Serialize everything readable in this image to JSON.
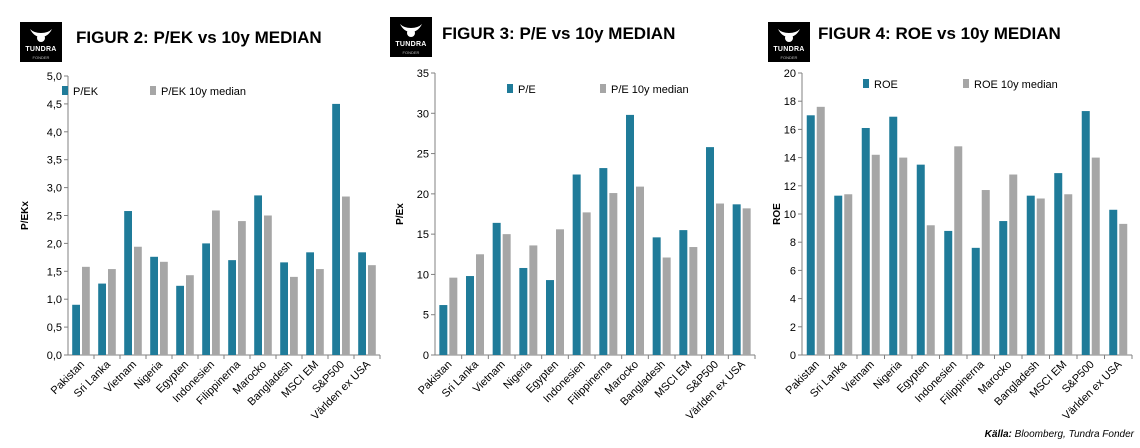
{
  "colors": {
    "series1": "#1f7b99",
    "series2": "#a6a6a6",
    "axis": "#808080",
    "grid": "#d9d9d9"
  },
  "logo": {
    "text": "TUNDRA",
    "sub": "FONDER"
  },
  "source": {
    "label": "Källa:",
    "text": " Bloomberg, Tundra Fonder"
  },
  "chart_data": [
    {
      "type": "bar",
      "title": "FIGUR 2: P/EK vs 10y MEDIAN",
      "ylabel": "P/EKx",
      "ylim": [
        0,
        5
      ],
      "yticks": [
        "0,0",
        "0,5",
        "1,0",
        "1,5",
        "2,0",
        "2,5",
        "3,0",
        "3,5",
        "4,0",
        "4,5",
        "5,0"
      ],
      "categories": [
        "Pakistan",
        "Sri Lanka",
        "Vietnam",
        "Nigeria",
        "Egypten",
        "Indonesien",
        "Filippinerna",
        "Marocko",
        "Bangladesh",
        "MSCI EM",
        "S&P500",
        "Världen ex USA"
      ],
      "series": [
        {
          "name": "P/EK",
          "values": [
            0.9,
            1.28,
            2.58,
            1.76,
            1.24,
            2.0,
            1.7,
            2.86,
            1.66,
            1.84,
            4.5,
            1.84
          ]
        },
        {
          "name": "P/EK 10y median",
          "values": [
            1.58,
            1.54,
            1.94,
            1.67,
            1.43,
            2.59,
            2.4,
            2.5,
            1.4,
            1.54,
            2.84,
            1.61
          ]
        }
      ],
      "grid": false,
      "legend": "top"
    },
    {
      "type": "bar",
      "title": "FIGUR 3: P/E vs 10y MEDIAN",
      "ylabel": "P/Ex",
      "ylim": [
        0,
        35
      ],
      "yticks": [
        "0",
        "5",
        "10",
        "15",
        "20",
        "25",
        "30",
        "35"
      ],
      "categories": [
        "Pakistan",
        "Sri Lanka",
        "Vietnam",
        "Nigeria",
        "Egypten",
        "Indonesien",
        "Filippinerna",
        "Marocko",
        "Bangladesh",
        "MSCI EM",
        "S&P500",
        "Världen ex USA"
      ],
      "series": [
        {
          "name": "P/E",
          "values": [
            6.2,
            9.8,
            16.4,
            10.8,
            9.3,
            22.4,
            23.2,
            29.8,
            14.6,
            15.5,
            25.8,
            18.7
          ]
        },
        {
          "name": "P/E 10y median",
          "values": [
            9.6,
            12.5,
            15.0,
            13.6,
            15.6,
            17.7,
            20.1,
            20.9,
            12.1,
            13.4,
            18.8,
            18.2
          ]
        }
      ],
      "grid": false,
      "legend": "top"
    },
    {
      "type": "bar",
      "title": "FIGUR 4: ROE vs 10y MEDIAN",
      "ylabel": "ROE",
      "ylim": [
        0,
        20
      ],
      "yticks": [
        "0",
        "2",
        "4",
        "6",
        "8",
        "10",
        "12",
        "14",
        "16",
        "18",
        "20"
      ],
      "categories": [
        "Pakistan",
        "Sri Lanka",
        "Vietnam",
        "Nigeria",
        "Egypten",
        "Indonesien",
        "Filippinerna",
        "Marocko",
        "Bangladesh",
        "MSCI EM",
        "S&P500",
        "Världen ex USA"
      ],
      "series": [
        {
          "name": "ROE",
          "values": [
            17.0,
            11.3,
            16.1,
            16.9,
            13.5,
            8.8,
            7.6,
            9.5,
            11.3,
            12.9,
            17.3,
            10.3
          ]
        },
        {
          "name": "ROE 10y median",
          "values": [
            17.6,
            11.4,
            14.2,
            14.0,
            9.2,
            14.8,
            11.7,
            12.8,
            11.1,
            11.4,
            14.0,
            9.3
          ]
        }
      ],
      "grid": false,
      "legend": "top"
    }
  ]
}
